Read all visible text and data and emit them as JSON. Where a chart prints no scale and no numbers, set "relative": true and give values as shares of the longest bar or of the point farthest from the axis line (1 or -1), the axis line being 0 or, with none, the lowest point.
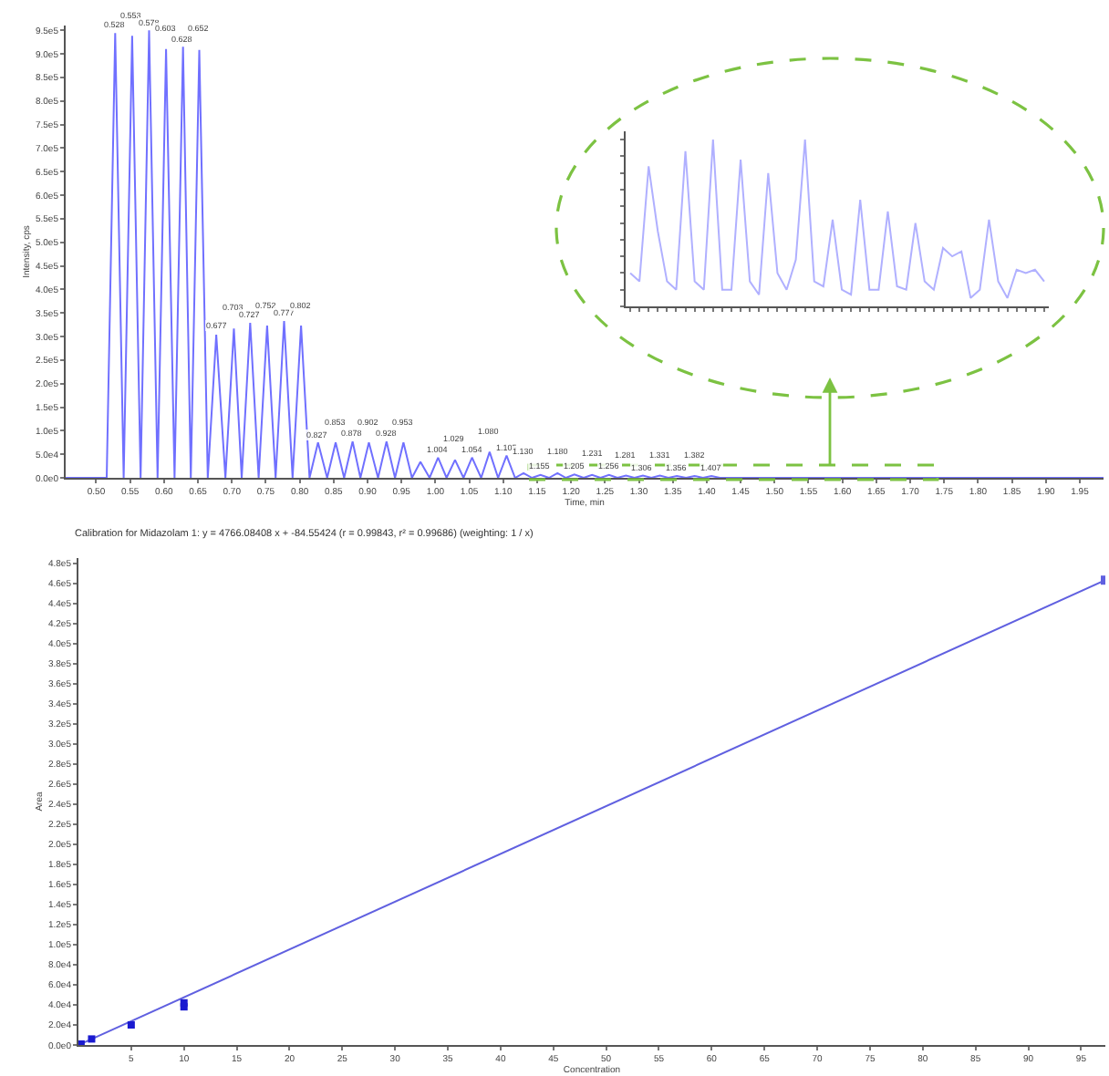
{
  "chart_data": [
    {
      "type": "line",
      "xlabel": "Time, min",
      "ylabel": "Intensity, cps",
      "color": "#7070ff",
      "x": [
        0.455,
        0.5155,
        0.528,
        0.5405,
        0.553,
        0.5655,
        0.578,
        0.5905,
        0.603,
        0.6155,
        0.628,
        0.6395,
        0.652,
        0.6645,
        0.677,
        0.6905,
        0.703,
        0.7145,
        0.727,
        0.7395,
        0.752,
        0.7645,
        0.777,
        0.7895,
        0.802,
        0.8145,
        0.827,
        0.8405,
        0.853,
        0.8655,
        0.878,
        0.8895,
        0.902,
        0.9155,
        0.928,
        0.9405,
        0.953,
        0.9655,
        0.978,
        0.9915,
        1.004,
        1.0165,
        1.029,
        1.0415,
        1.054,
        1.0675,
        1.08,
        1.0925,
        1.105,
        1.1175,
        1.13,
        1.1425,
        1.155,
        1.1675,
        1.18,
        1.1925,
        1.205,
        1.2185,
        1.231,
        1.2435,
        1.256,
        1.2685,
        1.281,
        1.2935,
        1.306,
        1.3185,
        1.331,
        1.3435,
        1.356,
        1.3695,
        1.382,
        1.3945,
        1.407,
        1.4195,
        1.985
      ],
      "values": [
        0,
        0,
        944000,
        0,
        938000,
        0,
        950000,
        0,
        910000,
        0,
        915000,
        0,
        908000,
        0,
        304000,
        0,
        317000,
        0,
        329000,
        0,
        323000,
        0,
        333000,
        0,
        323000,
        0,
        75000,
        0,
        75000,
        0,
        77000,
        0,
        75000,
        0,
        77000,
        0,
        75000,
        0,
        34000,
        0,
        43000,
        0,
        38000,
        0,
        43000,
        0,
        55000,
        0,
        47000,
        0,
        10000,
        0,
        6000,
        0,
        10000,
        0,
        7000,
        0,
        6000,
        0,
        6000,
        0,
        5000,
        0,
        5000,
        0,
        5000,
        0,
        4000,
        0,
        4000,
        0,
        4000,
        0,
        0
      ],
      "xlim": [
        0.455,
        1.985
      ],
      "xticks": [
        {
          "value": 0.5,
          "label": "0.50"
        },
        {
          "value": 0.55,
          "label": "0.55"
        },
        {
          "value": 0.6,
          "label": "0.60"
        },
        {
          "value": 0.65,
          "label": "0.65"
        },
        {
          "value": 0.7,
          "label": "0.70"
        },
        {
          "value": 0.75,
          "label": "0.75"
        },
        {
          "value": 0.8,
          "label": "0.80"
        },
        {
          "value": 0.85,
          "label": "0.85"
        },
        {
          "value": 0.9,
          "label": "0.90"
        },
        {
          "value": 0.95,
          "label": "0.95"
        },
        {
          "value": 1.0,
          "label": "1.00"
        },
        {
          "value": 1.05,
          "label": "1.05"
        },
        {
          "value": 1.1,
          "label": "1.10"
        },
        {
          "value": 1.15,
          "label": "1.15"
        },
        {
          "value": 1.2,
          "label": "1.20"
        },
        {
          "value": 1.25,
          "label": "1.25"
        },
        {
          "value": 1.3,
          "label": "1.30"
        },
        {
          "value": 1.35,
          "label": "1.35"
        },
        {
          "value": 1.4,
          "label": "1.40"
        },
        {
          "value": 1.45,
          "label": "1.45"
        },
        {
          "value": 1.5,
          "label": "1.50"
        },
        {
          "value": 1.55,
          "label": "1.55"
        },
        {
          "value": 1.6,
          "label": "1.60"
        },
        {
          "value": 1.65,
          "label": "1.65"
        },
        {
          "value": 1.7,
          "label": "1.70"
        },
        {
          "value": 1.75,
          "label": "1.75"
        },
        {
          "value": 1.8,
          "label": "1.80"
        },
        {
          "value": 1.85,
          "label": "1.85"
        },
        {
          "value": 1.9,
          "label": "1.90"
        },
        {
          "value": 1.95,
          "label": "1.95"
        }
      ],
      "ylim": [
        0,
        960000
      ],
      "yticks": [
        {
          "value": 0,
          "label": "0.0e0"
        },
        {
          "value": 50000,
          "label": "5.0e4"
        },
        {
          "value": 100000,
          "label": "1.0e5"
        },
        {
          "value": 150000,
          "label": "1.5e5"
        },
        {
          "value": 200000,
          "label": "2.0e5"
        },
        {
          "value": 250000,
          "label": "2.5e5"
        },
        {
          "value": 300000,
          "label": "3.0e5"
        },
        {
          "value": 350000,
          "label": "3.5e5"
        },
        {
          "value": 400000,
          "label": "4.0e5"
        },
        {
          "value": 450000,
          "label": "4.5e5"
        },
        {
          "value": 500000,
          "label": "5.0e5"
        },
        {
          "value": 550000,
          "label": "5.5e5"
        },
        {
          "value": 600000,
          "label": "6.0e5"
        },
        {
          "value": 650000,
          "label": "6.5e5"
        },
        {
          "value": 700000,
          "label": "7.0e5"
        },
        {
          "value": 750000,
          "label": "7.5e5"
        },
        {
          "value": 800000,
          "label": "8.0e5"
        },
        {
          "value": 850000,
          "label": "8.5e5"
        },
        {
          "value": 900000,
          "label": "9.0e5"
        },
        {
          "value": 950000,
          "label": "9.5e5"
        }
      ],
      "annotations": [
        {
          "text": "0.528",
          "x": 0.528,
          "y": 944000
        },
        {
          "text": "0.553",
          "x": 0.553,
          "y": 938000
        },
        {
          "text": "0.578",
          "x": 0.578,
          "y": 950000
        },
        {
          "text": "0.603",
          "x": 0.603,
          "y": 910000
        },
        {
          "text": "0.628",
          "x": 0.628,
          "y": 915000
        },
        {
          "text": "0.652",
          "x": 0.652,
          "y": 908000
        },
        {
          "text": "0.677",
          "x": 0.677,
          "y": 304000
        },
        {
          "text": "0.703",
          "x": 0.703,
          "y": 317000
        },
        {
          "text": "0.727",
          "x": 0.727,
          "y": 329000
        },
        {
          "text": "0.752",
          "x": 0.752,
          "y": 323000
        },
        {
          "text": "0.777",
          "x": 0.777,
          "y": 333000
        },
        {
          "text": "0.802",
          "x": 0.802,
          "y": 323000
        },
        {
          "text": "0.827",
          "x": 0.827,
          "y": 75000
        },
        {
          "text": "0.853",
          "x": 0.853,
          "y": 75000
        },
        {
          "text": "0.878",
          "x": 0.878,
          "y": 77000
        },
        {
          "text": "0.902",
          "x": 0.902,
          "y": 75000
        },
        {
          "text": "0.928",
          "x": 0.928,
          "y": 77000
        },
        {
          "text": "0.953",
          "x": 0.953,
          "y": 75000
        },
        {
          "text": "1.004",
          "x": 1.004,
          "y": 43000
        },
        {
          "text": "1.029",
          "x": 1.029,
          "y": 38000
        },
        {
          "text": "1.054",
          "x": 1.054,
          "y": 43000
        },
        {
          "text": "1.080",
          "x": 1.08,
          "y": 55000
        },
        {
          "text": "1.105",
          "x": 1.105,
          "y": 47000
        },
        {
          "text": "1.130",
          "x": 1.13,
          "y": 10000
        },
        {
          "text": "1.155",
          "x": 1.155,
          "y": 6000
        },
        {
          "text": "1.180",
          "x": 1.18,
          "y": 10000
        },
        {
          "text": "1.205",
          "x": 1.205,
          "y": 7000
        },
        {
          "text": "1.231",
          "x": 1.231,
          "y": 6000
        },
        {
          "text": "1.256",
          "x": 1.256,
          "y": 6000
        },
        {
          "text": "1.281",
          "x": 1.281,
          "y": 5000
        },
        {
          "text": "1.306",
          "x": 1.306,
          "y": 5000
        },
        {
          "text": "1.331",
          "x": 1.331,
          "y": 5000
        },
        {
          "text": "1.356",
          "x": 1.356,
          "y": 4000
        },
        {
          "text": "1.382",
          "x": 1.382,
          "y": 4000
        },
        {
          "text": "1.407",
          "x": 1.407,
          "y": 4000
        }
      ]
    },
    {
      "type": "line",
      "relative": true,
      "tick_labels": false,
      "color": "#b0b0ff",
      "categories": [
        null,
        null,
        null,
        null,
        null,
        null,
        null,
        null,
        null,
        null,
        null,
        null,
        null,
        null,
        null,
        null,
        null,
        null,
        null,
        null,
        null,
        null,
        null,
        null,
        null,
        null,
        null,
        null,
        null,
        null,
        null,
        null,
        null,
        null,
        null,
        null,
        null,
        null,
        null,
        null,
        null,
        null,
        null,
        null,
        null,
        null
      ],
      "values": [
        0.2,
        0.15,
        0.84,
        0.45,
        0.15,
        0.1,
        0.93,
        0.15,
        0.1,
        1.0,
        0.1,
        0.1,
        0.88,
        0.15,
        0.07,
        0.8,
        0.2,
        0.1,
        0.28,
        1.0,
        0.15,
        0.12,
        0.52,
        0.1,
        0.07,
        0.64,
        0.1,
        0.1,
        0.57,
        0.12,
        0.1,
        0.5,
        0.15,
        0.1,
        0.35,
        0.3,
        0.33,
        0.05,
        0.1,
        0.52,
        0.15,
        0.05,
        0.22,
        0.2,
        0.22,
        0.15
      ]
    },
    {
      "type": "scatter",
      "title": "Calibration for Midazolam 1: y = 4766.08408 x + -84.55424 (r = 0.99843, r² = 0.99686) (weighting: 1 / x)",
      "xlabel": "Concentration",
      "ylabel": "Area",
      "marker": "square",
      "xlim": [
        0,
        97.3
      ],
      "xticks": [
        5,
        10,
        15,
        20,
        25,
        30,
        35,
        40,
        45,
        50,
        55,
        60,
        65,
        70,
        75,
        80,
        85,
        90,
        95
      ],
      "ylim": [
        0,
        485000
      ],
      "yticks": [
        {
          "value": 0,
          "label": "0.0e0"
        },
        {
          "value": 20000,
          "label": "2.0e4"
        },
        {
          "value": 40000,
          "label": "4.0e4"
        },
        {
          "value": 60000,
          "label": "6.0e4"
        },
        {
          "value": 80000,
          "label": "8.0e4"
        },
        {
          "value": 100000,
          "label": "1.0e5"
        },
        {
          "value": 120000,
          "label": "1.2e5"
        },
        {
          "value": 140000,
          "label": "1.4e5"
        },
        {
          "value": 160000,
          "label": "1.6e5"
        },
        {
          "value": 180000,
          "label": "1.8e5"
        },
        {
          "value": 200000,
          "label": "2.0e5"
        },
        {
          "value": 220000,
          "label": "2.2e5"
        },
        {
          "value": 240000,
          "label": "2.4e5"
        },
        {
          "value": 260000,
          "label": "2.6e5"
        },
        {
          "value": 280000,
          "label": "2.8e5"
        },
        {
          "value": 300000,
          "label": "3.0e5"
        },
        {
          "value": 320000,
          "label": "3.2e5"
        },
        {
          "value": 340000,
          "label": "3.4e5"
        },
        {
          "value": 360000,
          "label": "3.6e5"
        },
        {
          "value": 380000,
          "label": "3.8e5"
        },
        {
          "value": 400000,
          "label": "4.0e5"
        },
        {
          "value": 420000,
          "label": "4.2e5"
        },
        {
          "value": 440000,
          "label": "4.4e5"
        },
        {
          "value": 460000,
          "label": "4.6e5"
        },
        {
          "value": 480000,
          "label": "4.8e5"
        }
      ],
      "series": [
        {
          "type": "line",
          "color": "#6060e0",
          "x": [
            0,
            97.3
          ],
          "values": [
            0,
            463000
          ]
        },
        {
          "type": "scatter",
          "color": "#1a1ad0",
          "x": [
            0.25,
            1.25,
            5,
            10,
            10
          ],
          "values": [
            1000,
            6000,
            20000,
            38000,
            42000
          ]
        }
      ]
    }
  ]
}
